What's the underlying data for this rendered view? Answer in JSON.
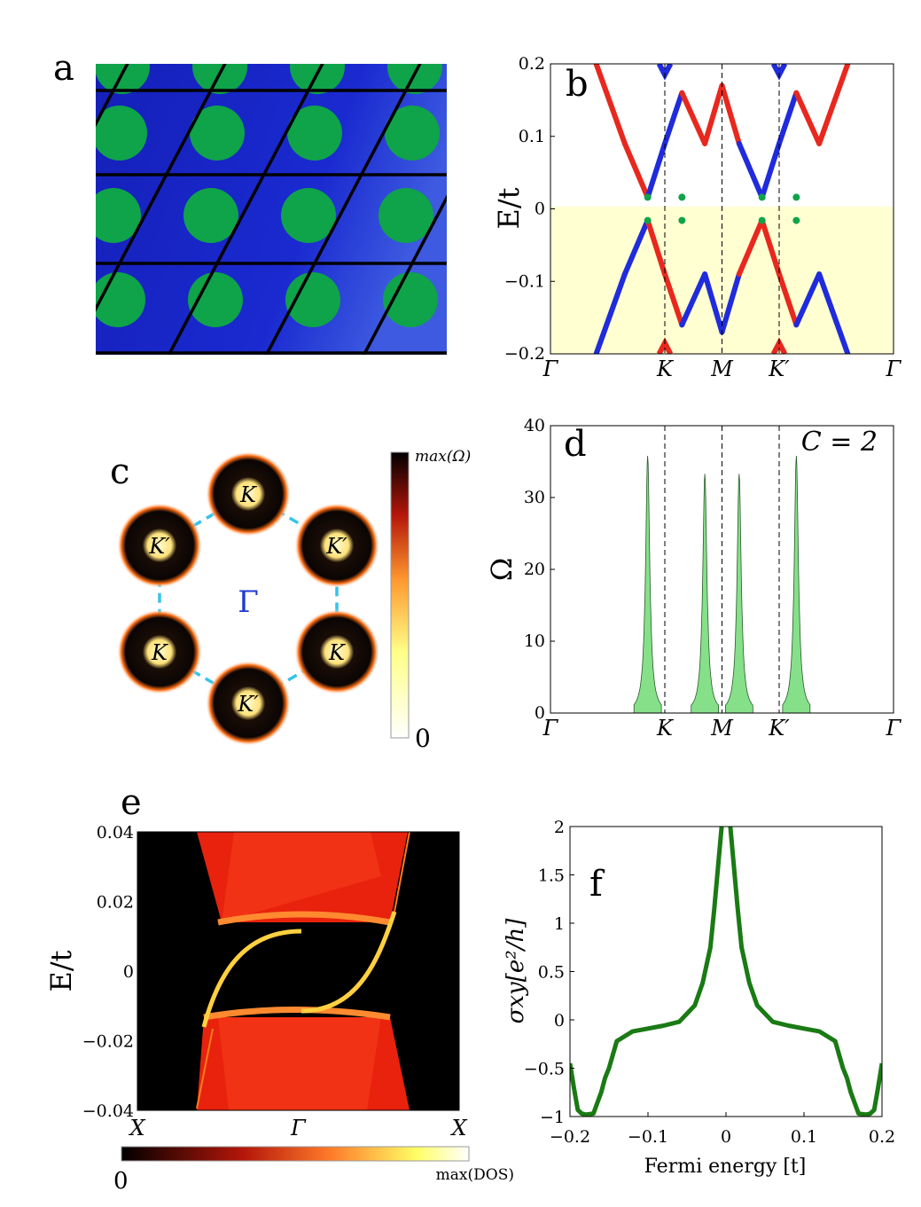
{
  "panels": {
    "a": {
      "label": "a"
    },
    "b": {
      "label": "b"
    },
    "c": {
      "label": "c",
      "center_label": "Γ",
      "point_labels": [
        "K",
        "K′",
        "K′",
        "K",
        "K",
        "K′"
      ],
      "colorbar_max": "max(Ω)",
      "colorbar_min": "0"
    },
    "d": {
      "label": "d",
      "annotation": "C = 2"
    },
    "e": {
      "label": "e",
      "colorbar_min": "0",
      "colorbar_max": "max(DOS)"
    },
    "f": {
      "label": "f"
    }
  },
  "colors": {
    "lattice_bg": "#1a28c8",
    "disk": "#0fa34a",
    "band_red": "#e8281e",
    "band_blue": "#1f2bdc",
    "occupied_fill": "#ffffd2",
    "berry_fill": "#86e08a",
    "hall_line": "#1a7a14",
    "dashed_hex": "#36c4e8"
  },
  "chart_data": [
    {
      "panel": "b",
      "type": "line",
      "ylabel": "E/t",
      "xticks": [
        "Γ",
        "K",
        "M",
        "K′",
        "Γ"
      ],
      "xtick_positions": [
        0,
        1,
        1.5,
        2,
        3
      ],
      "yticks": [
        "0.2",
        "0.1",
        "0",
        "−0.1",
        "−0.2"
      ],
      "ylim": [
        -0.2,
        0.2
      ],
      "shaded_region": [
        -0.2,
        0
      ],
      "series": [
        {
          "color": "red",
          "x": [
            0.4,
            0.65,
            0.85,
            1.0,
            1.15,
            1.35,
            1.5,
            1.65,
            1.85,
            2.0,
            2.15,
            2.35,
            2.6
          ],
          "values": [
            0.2,
            0.09,
            0.016,
            0.09,
            0.16,
            0.09,
            0.17,
            0.09,
            0.016,
            0.09,
            0.16,
            0.09,
            0.2
          ]
        }
      ]
    },
    {
      "panel": "d",
      "type": "area",
      "ylabel": "Ω",
      "xticks": [
        "Γ",
        "K",
        "M",
        "K′",
        "Γ"
      ],
      "yticks": [
        "40",
        "30",
        "20",
        "10",
        "0"
      ],
      "ylim": [
        0,
        40
      ],
      "peaks": [
        {
          "x": 0.85,
          "value": 35.8
        },
        {
          "x": 1.35,
          "value": 33.3
        },
        {
          "x": 1.65,
          "value": 33.3
        },
        {
          "x": 2.15,
          "value": 35.8
        }
      ]
    },
    {
      "panel": "e",
      "type": "heatmap",
      "ylabel": "E/t",
      "xticks": [
        "X",
        "Γ",
        "X"
      ],
      "yticks": [
        "0.04",
        "0.02",
        "0",
        "−0.02",
        "−0.04"
      ],
      "ylim": [
        -0.04,
        0.04
      ]
    },
    {
      "panel": "f",
      "type": "line",
      "xlabel": "Fermi energy   [t]",
      "ylabel": "σxy[e²/h]",
      "xticks": [
        "−0.2",
        "−0.1",
        "0",
        "0.1",
        "0.2"
      ],
      "yticks": [
        "2",
        "1.5",
        "1",
        "0.5",
        "0",
        "−0.5",
        "−1"
      ],
      "xlim": [
        -0.2,
        0.2
      ],
      "ylim": [
        -1,
        2
      ],
      "x": [
        -0.2,
        -0.195,
        -0.19,
        -0.185,
        -0.18,
        -0.17,
        -0.16,
        -0.155,
        -0.15,
        -0.14,
        -0.12,
        -0.1,
        -0.08,
        -0.06,
        -0.04,
        -0.03,
        -0.02,
        -0.015,
        -0.01,
        -0.005,
        0.005,
        0.01,
        0.015,
        0.02,
        0.03,
        0.04,
        0.06,
        0.08,
        0.1,
        0.12,
        0.14,
        0.15,
        0.155,
        0.16,
        0.17,
        0.18,
        0.185,
        0.19,
        0.195,
        0.2
      ],
      "values": [
        -0.45,
        -0.7,
        -0.93,
        -0.97,
        -0.98,
        -0.97,
        -0.75,
        -0.6,
        -0.5,
        -0.22,
        -0.12,
        -0.09,
        -0.06,
        -0.02,
        0.15,
        0.38,
        0.75,
        1.15,
        1.6,
        2.05,
        2.05,
        1.6,
        1.15,
        0.75,
        0.38,
        0.15,
        -0.02,
        -0.06,
        -0.09,
        -0.12,
        -0.22,
        -0.5,
        -0.6,
        -0.75,
        -0.97,
        -0.98,
        -0.97,
        -0.93,
        -0.7,
        -0.45
      ]
    }
  ]
}
